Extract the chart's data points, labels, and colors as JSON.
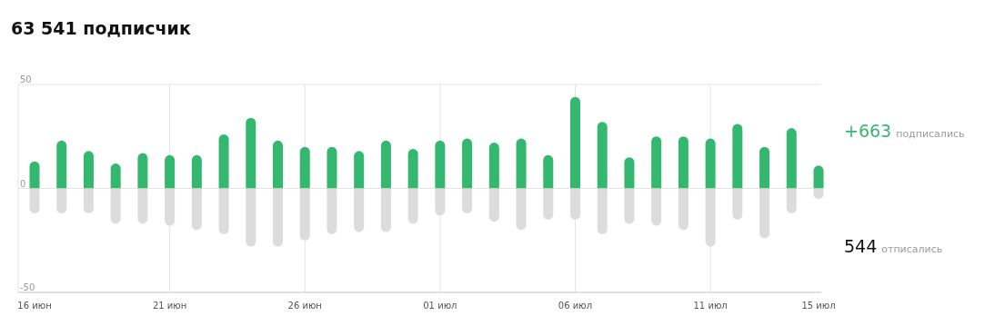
{
  "chart_data": {
    "type": "bar",
    "title": "63 541 подписчик",
    "categories": [
      "16 июн",
      null,
      null,
      null,
      null,
      "21 июн",
      null,
      null,
      null,
      null,
      "26 июн",
      null,
      null,
      null,
      null,
      "01 июл",
      null,
      null,
      null,
      null,
      "06 июл",
      null,
      null,
      null,
      null,
      "11 июл",
      null,
      null,
      null,
      "15 июл"
    ],
    "series": [
      {
        "color": "#34b86f",
        "values": [
          13,
          23,
          18,
          12,
          17,
          16,
          16,
          26,
          34,
          23,
          20,
          20,
          18,
          23,
          19,
          23,
          24,
          22,
          24,
          16,
          44,
          32,
          15,
          25,
          25,
          24,
          31,
          20,
          29,
          11
        ]
      },
      {
        "color": "#dcdcdc",
        "values": [
          -12,
          -12,
          -12,
          -17,
          -17,
          -18,
          -20,
          -22,
          -28,
          -28,
          -25,
          -22,
          -21,
          -21,
          -17,
          -13,
          -12,
          -16,
          -20,
          -15,
          -15,
          -22,
          -17,
          -18,
          -20,
          -28,
          -15,
          -24,
          -12,
          -5
        ]
      }
    ],
    "stacked": true,
    "ylim": [
      -50,
      50
    ],
    "yticks": [
      -50,
      0,
      50
    ],
    "grid": true,
    "annotations": [
      "+663 подписались",
      "544 отписались"
    ]
  }
}
